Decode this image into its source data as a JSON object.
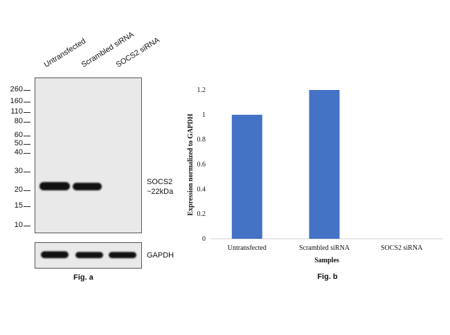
{
  "blot": {
    "lanes": [
      "Untransfected",
      "Scrambled siRNA",
      "SOCS2 siRNA"
    ],
    "markers": [
      "260",
      "160",
      "110",
      "80",
      "60",
      "50",
      "40",
      "30",
      "20",
      "15",
      "10"
    ],
    "target_label_line1": "SOCS2",
    "target_label_line2": "~22kDa",
    "loading_label": "GAPDH",
    "caption": "Fig. a"
  },
  "chart_caption": "Fig. b",
  "chart_data": {
    "type": "bar",
    "categories": [
      "Untransfected",
      "Scrambled siRNA",
      "SOCS2 siRNA"
    ],
    "values": [
      1.0,
      1.2,
      0.0
    ],
    "xlabel": "Samples",
    "ylabel": "Expression normalized to GAPDH",
    "ylim": [
      0,
      1.2
    ],
    "yticks": [
      "0",
      "0.2",
      "0.4",
      "0.6",
      "0.8",
      "1",
      "1.2"
    ],
    "bar_color": "#4472C4",
    "grid": false
  }
}
